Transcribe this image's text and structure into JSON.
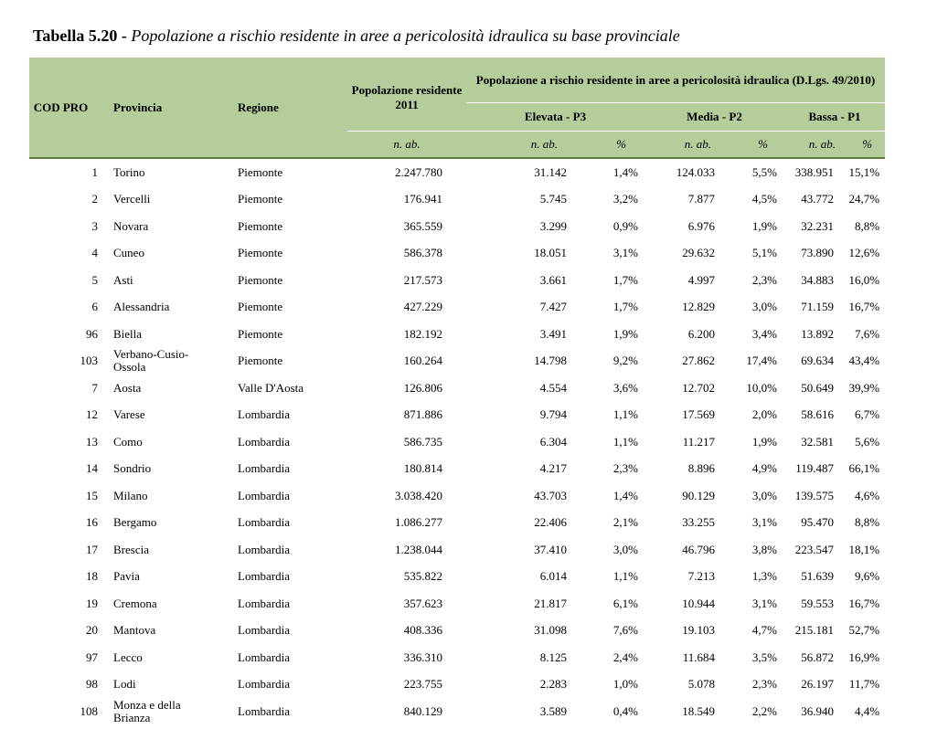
{
  "title": {
    "label": "Tabella 5.20 -",
    "text": "Popolazione a rischio residente in aree a pericolosità idraulica su base provinciale"
  },
  "table": {
    "header": {
      "cod": "COD PRO",
      "provincia": "Provincia",
      "regione": "Regione",
      "popolazione": "Popolazione residente 2011",
      "rischio": "Popolazione a rischio residente in aree a pericolosità idraulica (D.Lgs. 49/2010)",
      "classes": [
        "Elevata - P3",
        "Media - P2",
        "Bassa - P1"
      ],
      "units": [
        "n. ab.",
        "n. ab.",
        "%",
        "n. ab.",
        "%",
        "n. ab.",
        "%"
      ]
    },
    "rows": [
      [
        "1",
        "Torino",
        "Piemonte",
        "2.247.780",
        "31.142",
        "1,4%",
        "124.033",
        "5,5%",
        "338.951",
        "15,1%"
      ],
      [
        "2",
        "Vercelli",
        "Piemonte",
        "176.941",
        "5.745",
        "3,2%",
        "7.877",
        "4,5%",
        "43.772",
        "24,7%"
      ],
      [
        "3",
        "Novara",
        "Piemonte",
        "365.559",
        "3.299",
        "0,9%",
        "6.976",
        "1,9%",
        "32.231",
        "8,8%"
      ],
      [
        "4",
        "Cuneo",
        "Piemonte",
        "586.378",
        "18.051",
        "3,1%",
        "29.632",
        "5,1%",
        "73.890",
        "12,6%"
      ],
      [
        "5",
        "Asti",
        "Piemonte",
        "217.573",
        "3.661",
        "1,7%",
        "4.997",
        "2,3%",
        "34.883",
        "16,0%"
      ],
      [
        "6",
        "Alessandria",
        "Piemonte",
        "427.229",
        "7.427",
        "1,7%",
        "12.829",
        "3,0%",
        "71.159",
        "16,7%"
      ],
      [
        "96",
        "Biella",
        "Piemonte",
        "182.192",
        "3.491",
        "1,9%",
        "6.200",
        "3,4%",
        "13.892",
        "7,6%"
      ],
      [
        "103",
        "Verbano-Cusio-Ossola",
        "Piemonte",
        "160.264",
        "14.798",
        "9,2%",
        "27.862",
        "17,4%",
        "69.634",
        "43,4%"
      ],
      [
        "7",
        "Aosta",
        "Valle D'Aosta",
        "126.806",
        "4.554",
        "3,6%",
        "12.702",
        "10,0%",
        "50.649",
        "39,9%"
      ],
      [
        "12",
        "Varese",
        "Lombardia",
        "871.886",
        "9.794",
        "1,1%",
        "17.569",
        "2,0%",
        "58.616",
        "6,7%"
      ],
      [
        "13",
        "Como",
        "Lombardia",
        "586.735",
        "6.304",
        "1,1%",
        "11.217",
        "1,9%",
        "32.581",
        "5,6%"
      ],
      [
        "14",
        "Sondrio",
        "Lombardia",
        "180.814",
        "4.217",
        "2,3%",
        "8.896",
        "4,9%",
        "119.487",
        "66,1%"
      ],
      [
        "15",
        "Milano",
        "Lombardia",
        "3.038.420",
        "43.703",
        "1,4%",
        "90.129",
        "3,0%",
        "139.575",
        "4,6%"
      ],
      [
        "16",
        "Bergamo",
        "Lombardia",
        "1.086.277",
        "22.406",
        "2,1%",
        "33.255",
        "3,1%",
        "95.470",
        "8,8%"
      ],
      [
        "17",
        "Brescia",
        "Lombardia",
        "1.238.044",
        "37.410",
        "3,0%",
        "46.796",
        "3,8%",
        "223.547",
        "18,1%"
      ],
      [
        "18",
        "Pavia",
        "Lombardia",
        "535.822",
        "6.014",
        "1,1%",
        "7.213",
        "1,3%",
        "51.639",
        "9,6%"
      ],
      [
        "19",
        "Cremona",
        "Lombardia",
        "357.623",
        "21.817",
        "6,1%",
        "10.944",
        "3,1%",
        "59.553",
        "16,7%"
      ],
      [
        "20",
        "Mantova",
        "Lombardia",
        "408.336",
        "31.098",
        "7,6%",
        "19.103",
        "4,7%",
        "215.181",
        "52,7%"
      ],
      [
        "97",
        "Lecco",
        "Lombardia",
        "336.310",
        "8.125",
        "2,4%",
        "11.684",
        "3,5%",
        "56.872",
        "16,9%"
      ],
      [
        "98",
        "Lodi",
        "Lombardia",
        "223.755",
        "2.283",
        "1,0%",
        "5.078",
        "2,3%",
        "26.197",
        "11,7%"
      ],
      [
        "108",
        "Monza e della Brianza",
        "Lombardia",
        "840.129",
        "3.589",
        "0,4%",
        "18.549",
        "2,2%",
        "36.940",
        "4,4%"
      ]
    ]
  }
}
